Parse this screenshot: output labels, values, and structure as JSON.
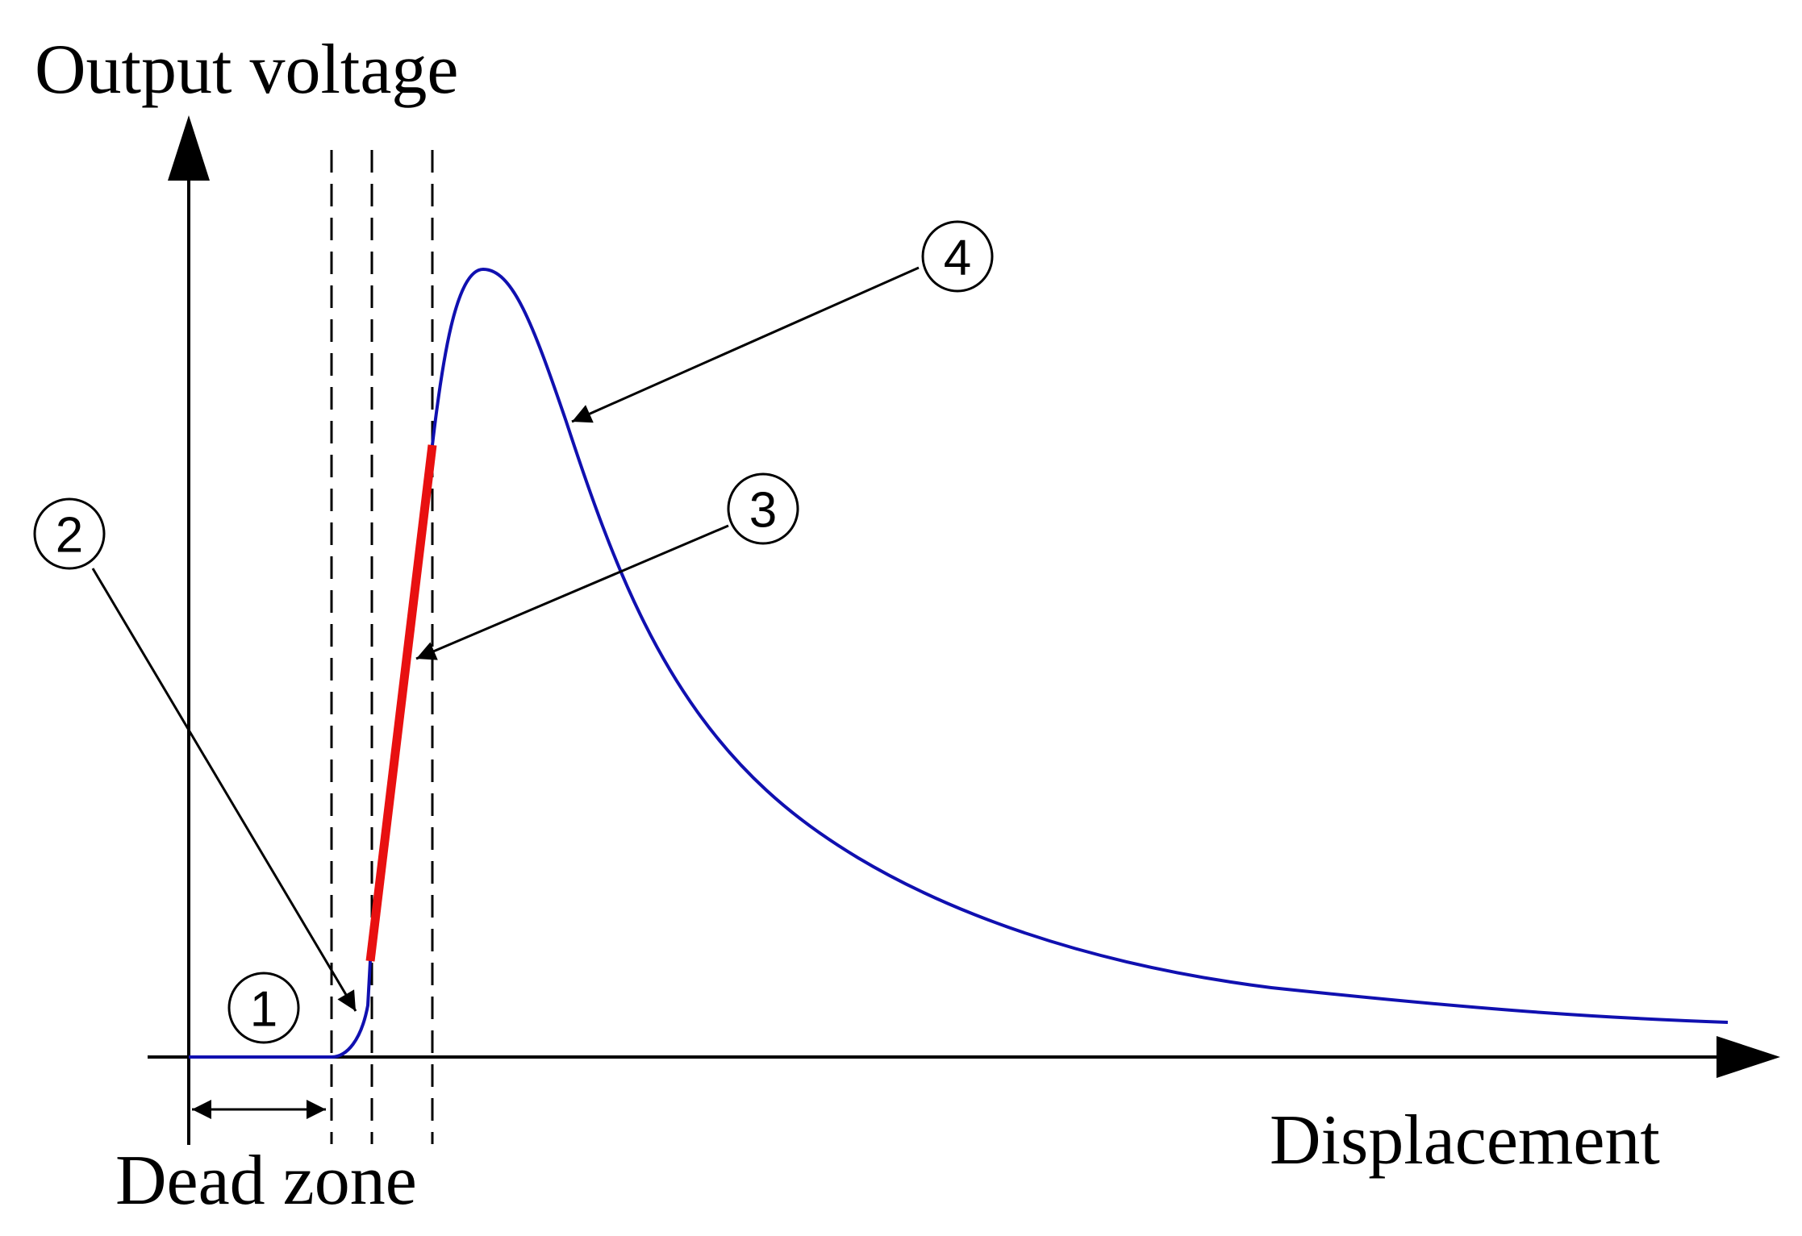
{
  "axes": {
    "y_label": "Output voltage",
    "x_label": "Displacement"
  },
  "dead_zone": {
    "label": "Dead zone"
  },
  "callouts": [
    {
      "label": "1"
    },
    {
      "label": "2"
    },
    {
      "label": "3"
    },
    {
      "label": "4"
    }
  ]
}
